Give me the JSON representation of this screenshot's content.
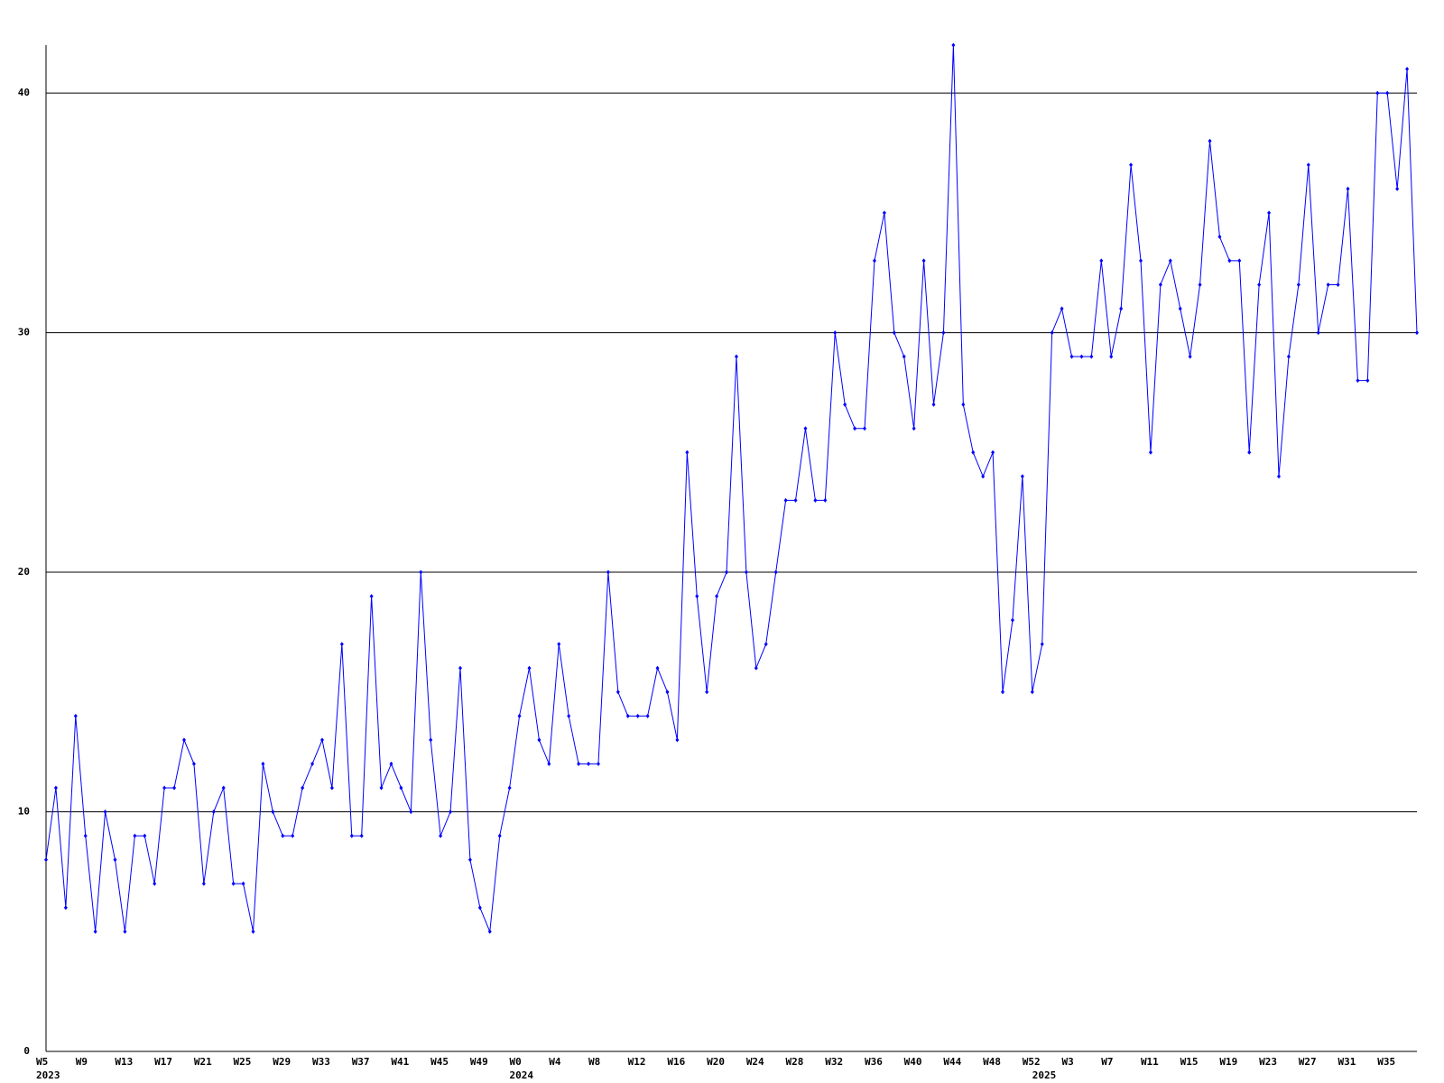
{
  "chart_data": {
    "type": "line",
    "categories": [
      {
        "label": "W5",
        "year": "2023"
      },
      null,
      null,
      null,
      "W9",
      null,
      null,
      null,
      "W13",
      null,
      null,
      null,
      "W17",
      null,
      null,
      null,
      "W21",
      null,
      null,
      null,
      "W25",
      null,
      null,
      null,
      "W29",
      null,
      null,
      null,
      "W33",
      null,
      null,
      null,
      "W37",
      null,
      null,
      null,
      "W41",
      null,
      null,
      null,
      "W45",
      null,
      null,
      null,
      "W49",
      null,
      null,
      null,
      {
        "label": "W0",
        "year": "2024"
      },
      null,
      null,
      null,
      "W4",
      null,
      null,
      null,
      "W8",
      null,
      null,
      null,
      "W12",
      null,
      null,
      null,
      "W16",
      null,
      null,
      null,
      "W20",
      null,
      null,
      null,
      "W24",
      null,
      null,
      null,
      "W28",
      null,
      null,
      null,
      "W32",
      null,
      null,
      null,
      "W36",
      null,
      null,
      null,
      "W40",
      null,
      null,
      null,
      "W44",
      null,
      null,
      null,
      "W48",
      null,
      null,
      null,
      "W52",
      {
        "year": "2025"
      },
      null,
      null,
      "W3",
      null,
      null,
      null,
      "W7",
      null,
      null,
      null,
      "W11",
      null,
      null,
      null,
      "W15",
      null,
      null,
      null,
      "W19",
      null,
      null,
      null,
      "W23",
      null,
      null,
      null,
      "W27",
      null,
      null,
      null,
      "W31",
      null,
      null,
      null,
      "W35",
      null,
      null,
      null
    ],
    "series": [
      {
        "color": "#0000ff",
        "values": [
          8,
          11,
          6,
          14,
          9,
          5,
          10,
          8,
          5,
          9,
          9,
          7,
          11,
          11,
          13,
          12,
          7,
          10,
          11,
          7,
          7,
          5,
          12,
          10,
          9,
          9,
          11,
          12,
          13,
          11,
          17,
          9,
          9,
          19,
          11,
          12,
          11,
          10,
          20,
          13,
          9,
          10,
          16,
          8,
          6,
          5,
          9,
          11,
          14,
          16,
          13,
          12,
          17,
          14,
          12,
          12,
          12,
          20,
          15,
          14,
          14,
          14,
          16,
          15,
          13,
          25,
          19,
          15,
          19,
          20,
          29,
          20,
          16,
          17,
          20,
          23,
          23,
          26,
          23,
          23,
          30,
          27,
          26,
          26,
          33,
          35,
          30,
          29,
          26,
          33,
          27,
          30,
          42,
          27,
          25,
          24,
          25,
          15,
          18,
          24,
          15,
          17,
          30,
          31,
          29,
          29,
          29,
          33,
          29,
          31,
          37,
          33,
          25,
          32,
          33,
          31,
          29,
          32,
          38,
          34,
          33,
          33,
          25,
          32,
          35,
          24,
          29,
          32,
          37,
          30,
          32,
          32,
          36,
          28,
          28,
          40,
          40,
          36,
          41,
          30
        ]
      }
    ],
    "ylim": [
      0,
      42
    ],
    "yticks": [
      0,
      10,
      20,
      30,
      40
    ],
    "grid": true
  }
}
